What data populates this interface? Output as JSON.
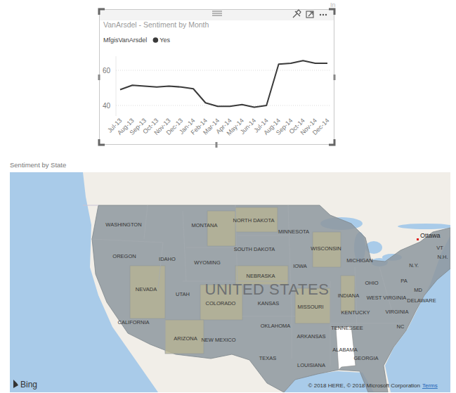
{
  "chart_data": {
    "type": "line",
    "title": "VanArsdel - Sentiment by Month",
    "legend_title": "MfgisVanArsdel",
    "categories": [
      "Jul-13",
      "Aug-13",
      "Sep-13",
      "Oct-13",
      "Nov-13",
      "Dec-13",
      "Jan-14",
      "Feb-14",
      "Mar-14",
      "Apr-14",
      "May-14",
      "Jun-14",
      "Jul-14",
      "Aug-14",
      "Sep-14",
      "Oct-14",
      "Nov-14",
      "Dec-14"
    ],
    "series": [
      {
        "name": "Yes",
        "color": "#3a3a3a",
        "values": [
          49,
          51.5,
          51,
          50.5,
          51,
          50.5,
          49.5,
          41.5,
          39.5,
          39.5,
          40.5,
          39,
          40,
          63.5,
          64,
          65.5,
          64,
          64
        ]
      }
    ],
    "ylim": [
      34,
      68
    ],
    "yticks": [
      40,
      60
    ],
    "grid": true,
    "legend": "top-left"
  },
  "map": {
    "title": "Sentiment by State",
    "country_label": "UNITED STATES",
    "state_labels": [
      "WASHINGTON",
      "OREGON",
      "IDAHO",
      "MONTANA",
      "WYOMING",
      "NORTH DAKOTA",
      "SOUTH DAKOTA",
      "MINNESOTA",
      "WISCONSIN",
      "MICHIGAN",
      "IOWA",
      "NEBRASKA",
      "NEVADA",
      "UTAH",
      "COLORADO",
      "KANSAS",
      "MISSOURI",
      "INDIANA",
      "OHIO",
      "PA",
      "N.Y.",
      "VT",
      "N.H.",
      "MD",
      "DELAWARE",
      "WEST VIRGINIA",
      "VIRGINIA",
      "KENTUCKY",
      "TENNESSEE",
      "NC",
      "CALIFORNIA",
      "ARIZONA",
      "NEW MEXICO",
      "OKLAHOMA",
      "ARKANSAS",
      "ALABAMA",
      "GEORGIA",
      "LOUISIANA",
      "TEXAS"
    ],
    "city_labels": [
      "Ottawa"
    ],
    "attribution": "© 2018 HERE, © 2018 Microsoft Corporation",
    "terms": "Terms",
    "provider": "Bing"
  },
  "page": {
    "corner_text": "In"
  }
}
